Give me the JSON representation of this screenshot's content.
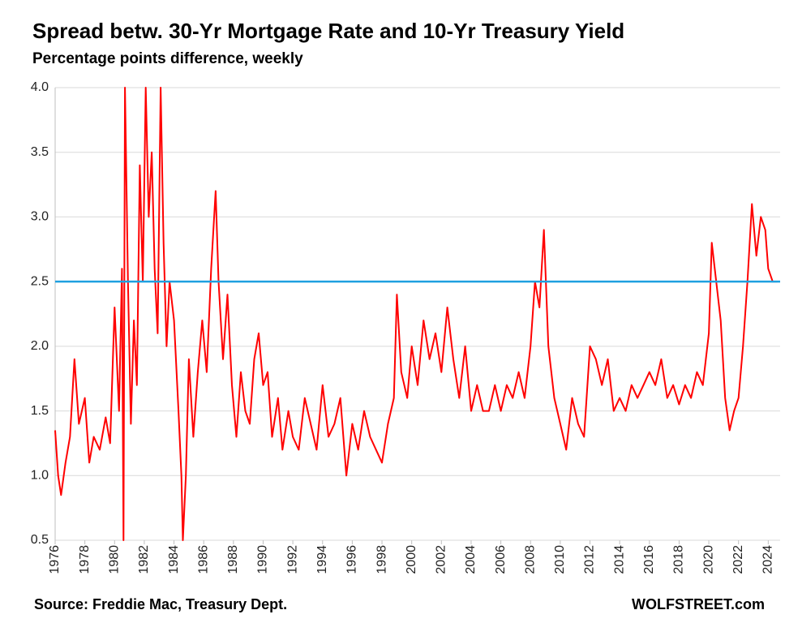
{
  "chart_data": {
    "type": "line",
    "title": "Spread betw. 30-Yr Mortgage Rate and 10-Yr Treasury Yield",
    "subtitle": "Percentage points difference, weekly",
    "source": "Source: Freddie Mac, Treasury Dept.",
    "credit": "WOLFSTREET.com",
    "color": "#ff0000",
    "x": [
      1976,
      1976.2,
      1976.4,
      1976.7,
      1977,
      1977.3,
      1977.6,
      1978,
      1978.3,
      1978.6,
      1979,
      1979.4,
      1979.7,
      1980,
      1980.3,
      1980.5,
      1980.6,
      1980.7,
      1980.9,
      1981.1,
      1981.3,
      1981.5,
      1981.7,
      1981.9,
      1982.1,
      1982.3,
      1982.5,
      1982.7,
      1982.9,
      1983.1,
      1983.3,
      1983.5,
      1983.7,
      1984,
      1984.3,
      1984.5,
      1984.6,
      1984.8,
      1985,
      1985.3,
      1985.6,
      1985.9,
      1986.2,
      1986.5,
      1986.8,
      1987,
      1987.3,
      1987.6,
      1987.9,
      1988.2,
      1988.5,
      1988.8,
      1989.1,
      1989.4,
      1989.7,
      1990,
      1990.3,
      1990.6,
      1991,
      1991.3,
      1991.7,
      1992,
      1992.4,
      1992.8,
      1993.2,
      1993.6,
      1994,
      1994.4,
      1994.8,
      1995.2,
      1995.6,
      1996,
      1996.4,
      1996.8,
      1997.2,
      1997.6,
      1998,
      1998.4,
      1998.8,
      1999,
      1999.3,
      1999.7,
      2000,
      2000.4,
      2000.8,
      2001.2,
      2001.6,
      2002,
      2002.4,
      2002.8,
      2003.2,
      2003.6,
      2004,
      2004.4,
      2004.8,
      2005.2,
      2005.6,
      2006,
      2006.4,
      2006.8,
      2007.2,
      2007.6,
      2008,
      2008.3,
      2008.6,
      2008.9,
      2009.2,
      2009.6,
      2010,
      2010.4,
      2010.8,
      2011.2,
      2011.6,
      2012,
      2012.4,
      2012.8,
      2013.2,
      2013.6,
      2014,
      2014.4,
      2014.8,
      2015.2,
      2015.6,
      2016,
      2016.4,
      2016.8,
      2017.2,
      2017.6,
      2018,
      2018.4,
      2018.8,
      2019.2,
      2019.6,
      2020,
      2020.2,
      2020.5,
      2020.8,
      2021.1,
      2021.4,
      2021.7,
      2022,
      2022.3,
      2022.6,
      2022.9,
      2023.2,
      2023.5,
      2023.8,
      2024,
      2024.3,
      2024.6
    ],
    "values": [
      1.35,
      1.0,
      0.85,
      1.1,
      1.3,
      1.9,
      1.4,
      1.6,
      1.1,
      1.3,
      1.2,
      1.45,
      1.25,
      2.3,
      1.5,
      2.6,
      0.5,
      4.0,
      2.5,
      1.4,
      2.2,
      1.7,
      3.4,
      2.5,
      4.0,
      3.0,
      3.5,
      2.6,
      2.1,
      4.0,
      2.8,
      2.0,
      2.5,
      2.2,
      1.5,
      1.0,
      0.5,
      1.0,
      1.9,
      1.3,
      1.8,
      2.2,
      1.8,
      2.6,
      3.2,
      2.5,
      1.9,
      2.4,
      1.7,
      1.3,
      1.8,
      1.5,
      1.4,
      1.9,
      2.1,
      1.7,
      1.8,
      1.3,
      1.6,
      1.2,
      1.5,
      1.3,
      1.2,
      1.6,
      1.4,
      1.2,
      1.7,
      1.3,
      1.4,
      1.6,
      1.0,
      1.4,
      1.2,
      1.5,
      1.3,
      1.2,
      1.1,
      1.4,
      1.6,
      2.4,
      1.8,
      1.6,
      2.0,
      1.7,
      2.2,
      1.9,
      2.1,
      1.8,
      2.3,
      1.9,
      1.6,
      2.0,
      1.5,
      1.7,
      1.5,
      1.5,
      1.7,
      1.5,
      1.7,
      1.6,
      1.8,
      1.6,
      2.0,
      2.5,
      2.3,
      2.9,
      2.0,
      1.6,
      1.4,
      1.2,
      1.6,
      1.4,
      1.3,
      2.0,
      1.9,
      1.7,
      1.9,
      1.5,
      1.6,
      1.5,
      1.7,
      1.6,
      1.7,
      1.8,
      1.7,
      1.9,
      1.6,
      1.7,
      1.55,
      1.7,
      1.6,
      1.8,
      1.7,
      2.1,
      2.8,
      2.5,
      2.2,
      1.6,
      1.35,
      1.5,
      1.6,
      2.0,
      2.5,
      3.1,
      2.7,
      3.0,
      2.9,
      2.6,
      2.5,
      2.5
    ],
    "hline": {
      "value": 2.5,
      "color": "#1fa0e0"
    },
    "xlim": [
      1976,
      2024.8
    ],
    "xticks": [
      1976,
      1978,
      1980,
      1982,
      1984,
      1986,
      1988,
      1990,
      1992,
      1994,
      1996,
      1998,
      2000,
      2002,
      2004,
      2006,
      2008,
      2010,
      2012,
      2014,
      2016,
      2018,
      2020,
      2022,
      2024
    ],
    "ylim": [
      0.5,
      4.0
    ],
    "yticks": [
      0.5,
      {
        "value": 1.0,
        "label": "1.0"
      },
      1.5,
      {
        "value": 2.0,
        "label": "2.0"
      },
      2.5,
      {
        "value": 3.0,
        "label": "3.0"
      },
      3.5,
      {
        "value": 4.0,
        "label": "4.0"
      }
    ],
    "grid": true
  }
}
